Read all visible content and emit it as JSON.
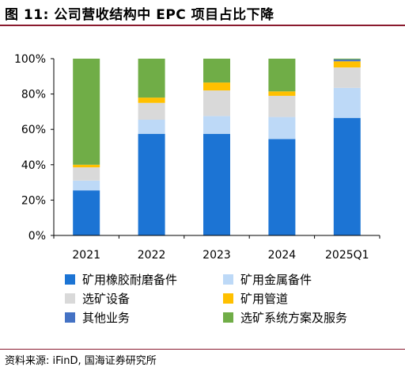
{
  "figure": {
    "title": "图 11: 公司营收结构中 EPC 项目占比下降",
    "source": "资料来源: iFinD, 国海证券研究所"
  },
  "chart_data": {
    "type": "bar",
    "stacked": true,
    "percent_stacked": true,
    "categories": [
      "2021",
      "2022",
      "2023",
      "2024",
      "2025Q1"
    ],
    "y_ticks": [
      "0%",
      "20%",
      "40%",
      "60%",
      "80%",
      "100%"
    ],
    "ylim": [
      0,
      100
    ],
    "grid": false,
    "legend_position": "bottom",
    "series": [
      {
        "name": "矿用橡胶耐磨备件",
        "color": "#1c74d4",
        "values": [
          25.5,
          57.5,
          57.5,
          54.5,
          66.5
        ]
      },
      {
        "name": "矿用金属备件",
        "color": "#bdd9f7",
        "values": [
          5.5,
          8.0,
          10.0,
          12.5,
          17.0
        ]
      },
      {
        "name": "选矿设备",
        "color": "#d9d9d9",
        "values": [
          7.5,
          9.5,
          14.5,
          12.0,
          11.5
        ]
      },
      {
        "name": "矿用管道",
        "color": "#ffc000",
        "values": [
          1.5,
          3.0,
          4.5,
          2.5,
          3.5
        ]
      },
      {
        "name": "其他业务",
        "color": "#4472c4",
        "values": [
          0.0,
          0.0,
          0.0,
          0.0,
          1.0
        ]
      },
      {
        "name": "选矿系统方案及服务",
        "color": "#70ad47",
        "values": [
          60.0,
          22.0,
          13.5,
          18.5,
          0.5
        ]
      }
    ]
  }
}
